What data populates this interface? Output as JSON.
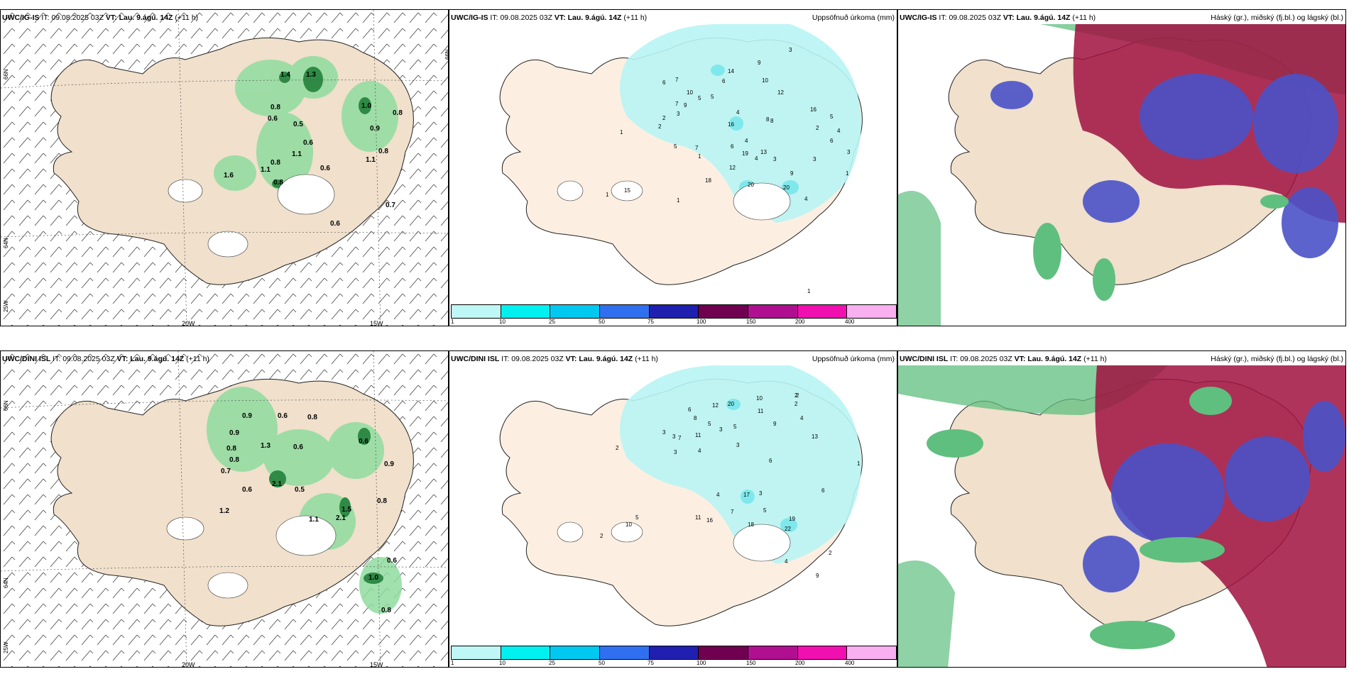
{
  "colors": {
    "land": "#f0e0cc",
    "precip_light": "#b8f4f4",
    "precip_mid": "#7fe8ec",
    "cloud_green": "#5fbf7f",
    "cloud_red": "#a01040",
    "cloud_blue": "#4a52c8",
    "wind_green": "#8fdc9f",
    "wind_dark": "#2e8a45"
  },
  "rows": [
    {
      "model": "UWC/IG-IS",
      "it_label": "IT:",
      "it_value": "09.08.2025 03Z",
      "vt_label": "VT:",
      "vt_value": "Lau. 9.ágú. 14Z",
      "lead": "(+11 h)"
    },
    {
      "model": "UWC/DINI ISL",
      "it_label": "IT:",
      "it_value": "09.08.2025 03Z",
      "vt_label": "VT:",
      "vt_value": "Lau. 9.ágú. 14Z",
      "lead": "(+11 h)"
    }
  ],
  "precip_title": "Uppsöfnuð úrkoma (mm)",
  "cloud_title": "Háský (gr.), miðský (fj.bl.) og lágský (bl.)",
  "axis_labels": {
    "lat_66": "66N",
    "lat_64": "64N",
    "lon_25": "25W",
    "lon_20": "20W",
    "lon_15": "15W"
  },
  "legend": {
    "ticks": [
      "1",
      "10",
      "25",
      "50",
      "75",
      "100",
      "150",
      "200",
      "400"
    ],
    "colors": [
      "#bff7f7",
      "#00f0f0",
      "#00c8f0",
      "#3070f0",
      "#2020b0",
      "#700050",
      "#b01090",
      "#f010b0",
      "#f8b0f0"
    ]
  },
  "wind_values_top": [
    "1.4",
    "1.3",
    "0.8",
    "0.6",
    "0.5",
    "0.6",
    "1.1",
    "0.8",
    "1.1",
    "0.6",
    "0.8",
    "1.0",
    "0.8",
    "0.9",
    "1.1",
    "0.8",
    "0.7",
    "0.6",
    "1.6"
  ],
  "wind_values_bottom": [
    "0.9",
    "0.6",
    "0.8",
    "0.9",
    "0.8",
    "1.3",
    "0.6",
    "0.8",
    "0.7",
    "0.6",
    "2.1",
    "0.5",
    "1.1",
    "1.5",
    "0.6",
    "0.9",
    "0.8",
    "0.6",
    "0.8",
    "1.0",
    "1.2",
    "2.1"
  ],
  "precip_values_top": [
    "14",
    "9",
    "3",
    "6",
    "7",
    "10",
    "5",
    "7",
    "9",
    "12",
    "6",
    "10",
    "2",
    "5",
    "4",
    "8",
    "2",
    "3",
    "16",
    "5",
    "1",
    "4",
    "6",
    "7",
    "5",
    "16",
    "4",
    "1",
    "3",
    "19",
    "3",
    "13",
    "8",
    "12",
    "18",
    "20",
    "20",
    "9",
    "4",
    "1",
    "1",
    "15",
    "3",
    "6",
    "4",
    "2",
    "1",
    "1"
  ],
  "precip_values_bottom": [
    "20",
    "10",
    "11",
    "2",
    "2",
    "9",
    "4",
    "6",
    "8",
    "12",
    "5",
    "3",
    "3",
    "13",
    "4",
    "3",
    "7",
    "11",
    "5",
    "3",
    "2",
    "3",
    "6",
    "17",
    "7",
    "4",
    "5",
    "3",
    "11",
    "16",
    "18",
    "22",
    "19",
    "4",
    "2",
    "2",
    "9",
    "10",
    "5",
    "2",
    "6",
    "1"
  ]
}
